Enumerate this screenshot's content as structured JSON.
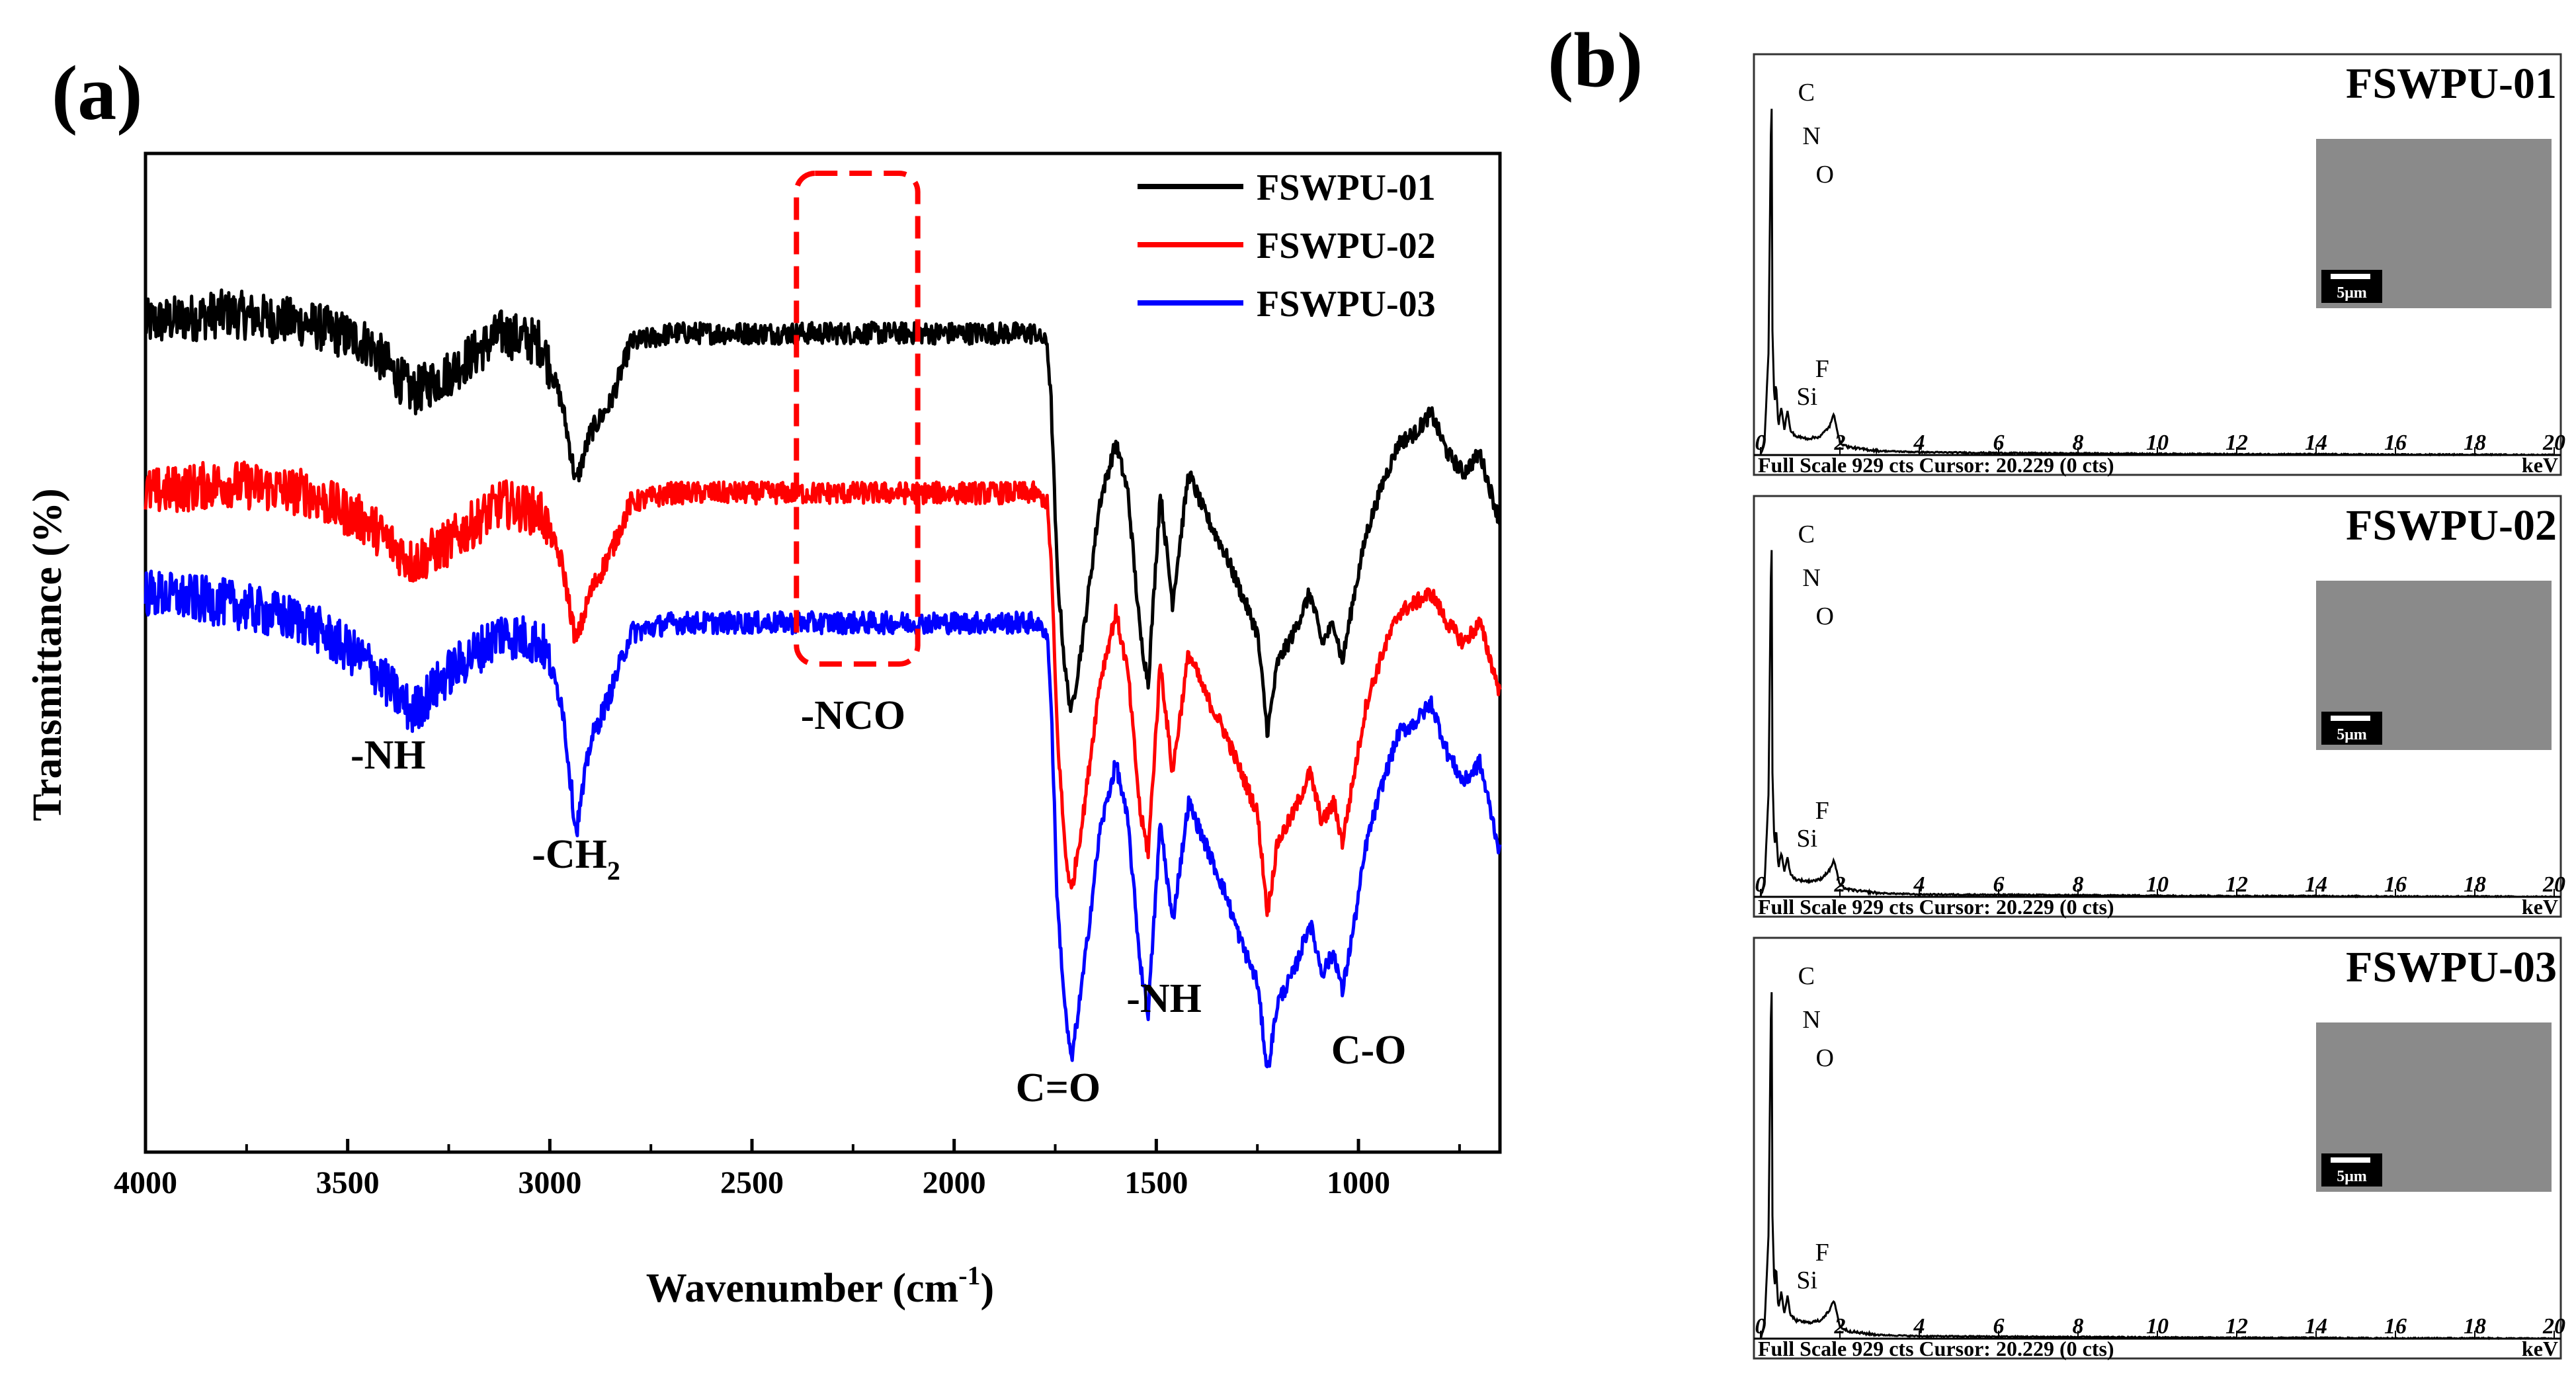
{
  "figure": {
    "panel_a_label": "(a)",
    "panel_b_label": "(b)"
  },
  "chart_data": [
    {
      "type": "line",
      "title": "",
      "xlabel": "Wavenumber (cm",
      "xlabel_sup": "-1",
      "xlabel_close": ")",
      "ylabel": "Transmittance (%)",
      "xlim": [
        4000,
        650
      ],
      "x_reversed": true,
      "y_ticks_shown": false,
      "xticks": [
        4000,
        3500,
        3000,
        2500,
        2000,
        1500,
        1000
      ],
      "legend": {
        "position": "top-right"
      },
      "series": [
        {
          "name": "FSWPU-01",
          "color": "#000000",
          "x": [
            4000,
            3800,
            3600,
            3450,
            3340,
            3250,
            3120,
            3020,
            2970,
            2935,
            2900,
            2850,
            2800,
            2700,
            2500,
            2300,
            2100,
            1900,
            1800,
            1770,
            1760,
            1745,
            1725,
            1710,
            1680,
            1640,
            1600,
            1570,
            1540,
            1520,
            1490,
            1460,
            1420,
            1380,
            1330,
            1290,
            1250,
            1225,
            1200,
            1160,
            1120,
            1090,
            1060,
            1040,
            1010,
            980,
            940,
            900,
            860,
            820,
            780,
            740,
            700,
            650
          ],
          "y": [
            83,
            84,
            83,
            81,
            76,
            78,
            82,
            81,
            75,
            67,
            72,
            75,
            81,
            82,
            82,
            82,
            82,
            82,
            82,
            81,
            75,
            58,
            48,
            44,
            52,
            65,
            71,
            66,
            52,
            47,
            66,
            55,
            68,
            64,
            60,
            56,
            52,
            42,
            49,
            52,
            56,
            51,
            53,
            49,
            56,
            62,
            67,
            71,
            72,
            74,
            70,
            68,
            70,
            63
          ]
        },
        {
          "name": "FSWPU-02",
          "color": "#ff0000",
          "x": [
            4000,
            3800,
            3600,
            3450,
            3340,
            3250,
            3120,
            3020,
            2970,
            2935,
            2900,
            2850,
            2800,
            2700,
            2500,
            2300,
            2100,
            1900,
            1800,
            1770,
            1760,
            1745,
            1725,
            1710,
            1680,
            1640,
            1600,
            1570,
            1540,
            1520,
            1490,
            1460,
            1420,
            1380,
            1330,
            1290,
            1250,
            1225,
            1200,
            1160,
            1120,
            1090,
            1060,
            1040,
            1010,
            980,
            940,
            900,
            860,
            820,
            780,
            740,
            700,
            650
          ],
          "y": [
            66,
            67,
            66,
            63,
            59,
            61,
            65,
            64,
            59,
            51,
            56,
            60,
            65,
            66,
            66,
            66,
            66,
            66,
            66,
            65,
            59,
            42,
            30,
            26,
            34,
            47,
            54,
            48,
            34,
            30,
            49,
            38,
            50,
            46,
            42,
            38,
            34,
            24,
            31,
            34,
            38,
            33,
            35,
            31,
            38,
            45,
            50,
            54,
            55,
            56,
            53,
            51,
            53,
            46
          ]
        },
        {
          "name": "FSWPU-03",
          "color": "#0000ff",
          "x": [
            4000,
            3800,
            3600,
            3450,
            3340,
            3250,
            3120,
            3020,
            2970,
            2935,
            2900,
            2850,
            2800,
            2700,
            2500,
            2300,
            2100,
            1900,
            1800,
            1770,
            1760,
            1745,
            1725,
            1710,
            1680,
            1640,
            1600,
            1570,
            1540,
            1520,
            1490,
            1460,
            1420,
            1380,
            1330,
            1290,
            1250,
            1225,
            1200,
            1160,
            1120,
            1090,
            1060,
            1040,
            1010,
            980,
            940,
            900,
            860,
            820,
            780,
            740,
            700,
            650
          ],
          "y": [
            56,
            55,
            53,
            49,
            44,
            48,
            52,
            51,
            45,
            32,
            41,
            46,
            52,
            53,
            53,
            53,
            53,
            53,
            53,
            52,
            45,
            25,
            14,
            9,
            18,
            32,
            39,
            33,
            19,
            14,
            33,
            23,
            35,
            31,
            26,
            21,
            17,
            8,
            15,
            18,
            23,
            18,
            20,
            16,
            23,
            31,
            37,
            42,
            43,
            45,
            40,
            37,
            39,
            30
          ]
        }
      ],
      "annotations": [
        {
          "text": "-NH",
          "near_x": 3400
        },
        {
          "text": "-CH",
          "sub": "2",
          "near_x": 2935
        },
        {
          "text": "-NCO",
          "near_x": 2250,
          "boxed": true,
          "box_color": "#ff0000"
        },
        {
          "text": "C=O",
          "near_x": 1710
        },
        {
          "text": "-NH",
          "near_x": 1530
        },
        {
          "text": "C-O",
          "near_x": 1040
        }
      ]
    },
    {
      "type": "line",
      "chart_kind": "EDS spectra",
      "xlabel_unit": "keV",
      "xlim": [
        0,
        20
      ],
      "xticks": [
        0,
        2,
        4,
        6,
        8,
        10,
        12,
        14,
        16,
        18,
        20
      ],
      "footer_text": "Full Scale 929 cts Cursor: 20.229 (0 cts)",
      "scalebar_label": "5μm",
      "spectra": [
        {
          "name": "FSWPU-01",
          "elements": [
            "C",
            "N",
            "O",
            "F",
            "Si"
          ],
          "energy_keV": [
            0.0,
            0.1,
            0.2,
            0.277,
            0.3,
            0.35,
            0.39,
            0.45,
            0.525,
            0.6,
            0.677,
            0.75,
            0.9,
            1.2,
            1.5,
            1.74,
            1.85,
            2.0,
            2.2,
            2.5,
            3.0,
            4.0,
            6.0,
            8.0,
            10.0,
            12.0,
            14.0,
            16.0,
            18.0,
            20.0
          ],
          "counts": [
            0,
            30,
            250,
            929,
            300,
            120,
            180,
            70,
            120,
            60,
            110,
            60,
            45,
            40,
            45,
            70,
            100,
            30,
            20,
            15,
            10,
            7,
            5,
            4,
            3,
            2,
            2,
            1,
            1,
            0
          ]
        },
        {
          "name": "FSWPU-02",
          "elements": [
            "C",
            "N",
            "O",
            "F",
            "Si"
          ],
          "energy_keV": [
            0.0,
            0.1,
            0.2,
            0.277,
            0.3,
            0.35,
            0.39,
            0.45,
            0.525,
            0.6,
            0.677,
            0.75,
            0.9,
            1.2,
            1.5,
            1.74,
            1.85,
            2.0,
            2.2,
            2.5,
            3.0,
            4.0,
            6.0,
            8.0,
            10.0,
            12.0,
            14.0,
            16.0,
            18.0,
            20.0
          ],
          "counts": [
            0,
            30,
            250,
            929,
            300,
            120,
            170,
            70,
            110,
            60,
            100,
            55,
            42,
            38,
            42,
            65,
            90,
            28,
            18,
            14,
            9,
            6,
            5,
            4,
            3,
            2,
            2,
            1,
            1,
            0
          ]
        },
        {
          "name": "FSWPU-03",
          "elements": [
            "C",
            "N",
            "O",
            "F",
            "Si"
          ],
          "energy_keV": [
            0.0,
            0.1,
            0.2,
            0.277,
            0.3,
            0.35,
            0.39,
            0.45,
            0.525,
            0.6,
            0.677,
            0.75,
            0.9,
            1.2,
            1.5,
            1.74,
            1.85,
            2.0,
            2.2,
            2.5,
            3.0,
            4.0,
            6.0,
            8.0,
            10.0,
            12.0,
            14.0,
            16.0,
            18.0,
            20.0
          ],
          "counts": [
            0,
            30,
            250,
            929,
            300,
            120,
            180,
            70,
            115,
            60,
            105,
            58,
            44,
            39,
            44,
            68,
            95,
            29,
            19,
            14,
            9,
            6,
            5,
            4,
            3,
            2,
            2,
            1,
            1,
            0
          ]
        }
      ]
    }
  ],
  "style": {
    "ir_colors": [
      "#000000",
      "#ff0000",
      "#0000ff"
    ],
    "nco_box_color": "#ff0000",
    "sem_fill": "#8a8a8a"
  }
}
